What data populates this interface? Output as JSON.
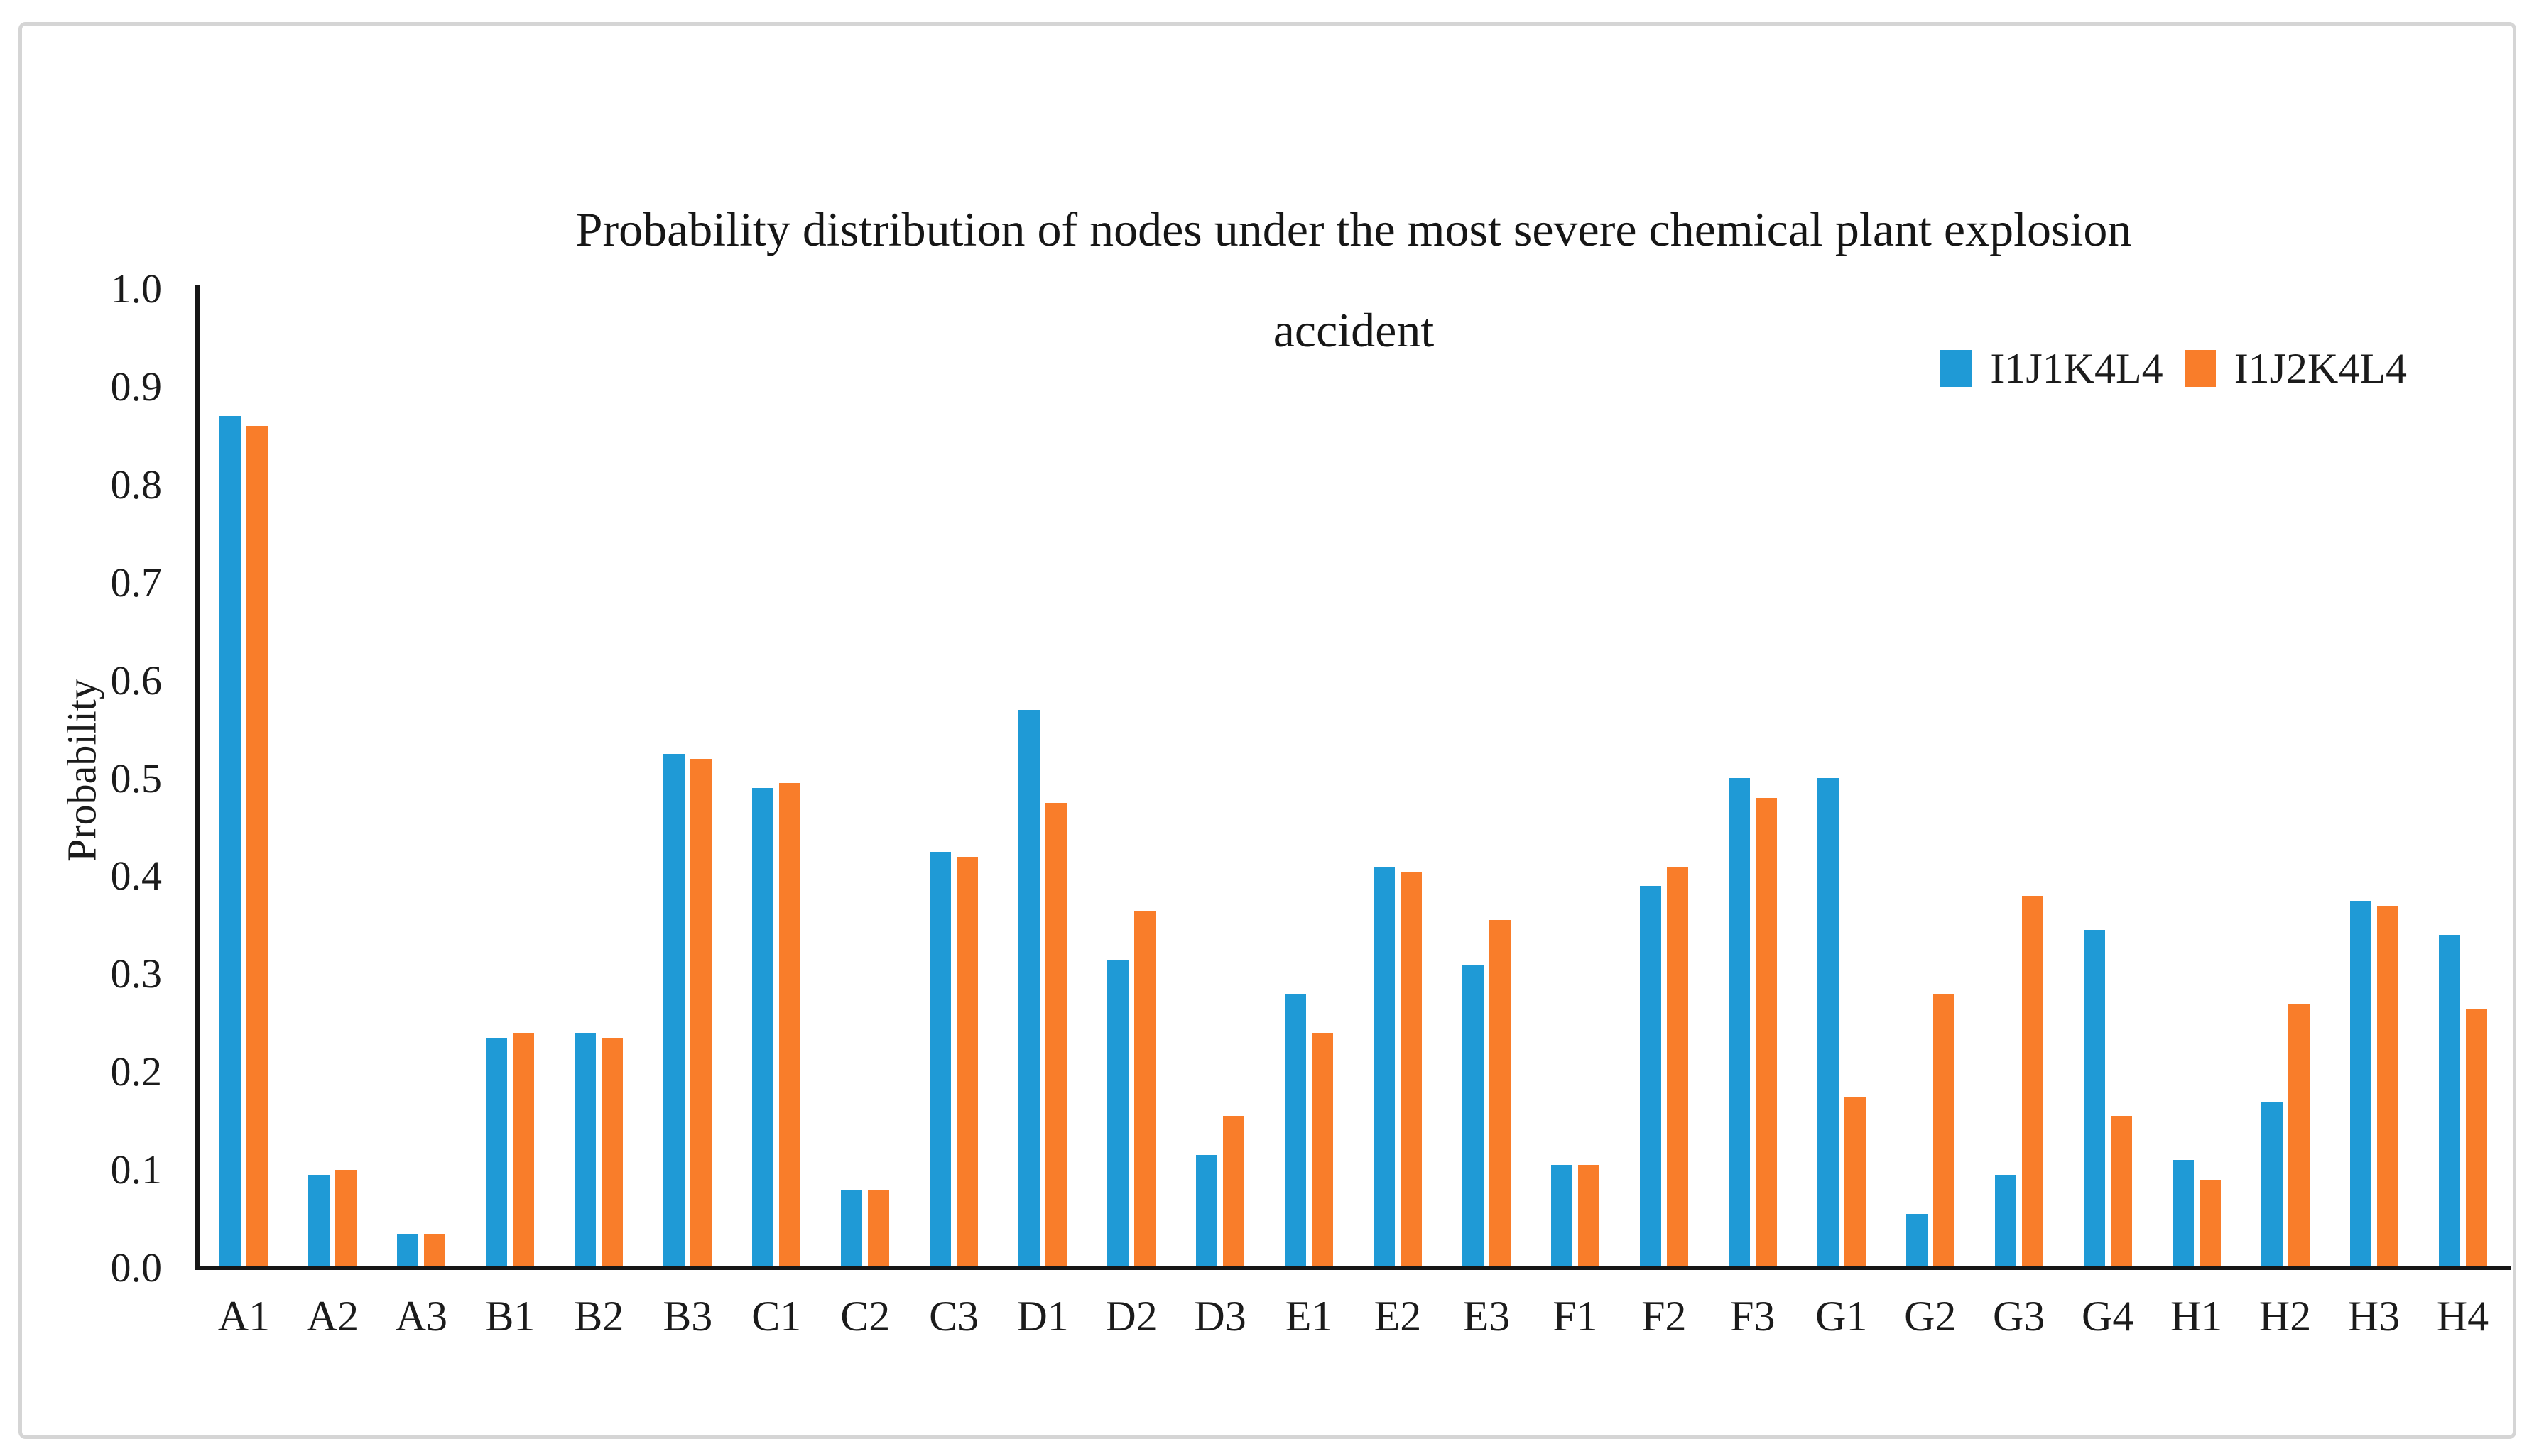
{
  "figure": {
    "background": "#ffffff",
    "frame_color": "#d5d5d5"
  },
  "chart_data": {
    "type": "bar",
    "title": "Probability distribution of nodes under the most severe chemical plant explosion accident",
    "title_lines": [
      "Probability distribution of nodes under the most severe chemical plant explosion",
      "accident"
    ],
    "xlabel": "",
    "ylabel": "Probability",
    "ylim": [
      0,
      1
    ],
    "ytick_step": 0.1,
    "yticks": [
      "0.0",
      "0.1",
      "0.2",
      "0.3",
      "0.4",
      "0.5",
      "0.6",
      "0.7",
      "0.8",
      "0.9",
      "1.0"
    ],
    "grid": false,
    "legend_position": "top-right",
    "categories": [
      "A1",
      "A2",
      "A3",
      "B1",
      "B2",
      "B3",
      "C1",
      "C2",
      "C3",
      "D1",
      "D2",
      "D3",
      "E1",
      "E2",
      "E3",
      "F1",
      "F2",
      "F3",
      "G1",
      "G2",
      "G3",
      "G4",
      "H1",
      "H2",
      "H3",
      "H4"
    ],
    "series": [
      {
        "name": "I1J1K4L4",
        "color": "#1F9AD6",
        "values": [
          0.87,
          0.095,
          0.035,
          0.235,
          0.24,
          0.525,
          0.49,
          0.08,
          0.425,
          0.57,
          0.315,
          0.115,
          0.28,
          0.41,
          0.31,
          0.105,
          0.39,
          0.5,
          0.5,
          0.055,
          0.095,
          0.345,
          0.11,
          0.17,
          0.375,
          0.34
        ]
      },
      {
        "name": "I1J2K4L4",
        "color": "#F97D2A",
        "values": [
          0.86,
          0.1,
          0.035,
          0.24,
          0.235,
          0.52,
          0.495,
          0.08,
          0.42,
          0.475,
          0.365,
          0.155,
          0.24,
          0.405,
          0.355,
          0.105,
          0.41,
          0.48,
          0.175,
          0.28,
          0.38,
          0.155,
          0.09,
          0.27,
          0.37,
          0.265
        ]
      }
    ]
  }
}
